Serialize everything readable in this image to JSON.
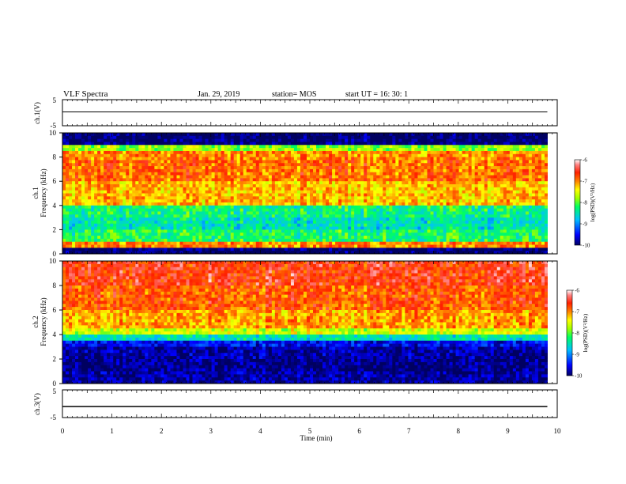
{
  "header": {
    "title": "VLF Spectra",
    "date": "Jan. 29, 2019",
    "station": "station= MOS",
    "start": "start  UT =   16: 30: 1"
  },
  "panels": {
    "ch1": {
      "label": "ch.1(V)",
      "ticks": [
        "5",
        "-5"
      ]
    },
    "spec1": {
      "label_line1": "ch.1",
      "label_line2": "Frequency (kHz)",
      "ticks": [
        "10",
        "8",
        "6",
        "4",
        "2",
        "0"
      ]
    },
    "spec2": {
      "label_line1": "ch.2",
      "label_line2": "Frequency (kHz)",
      "ticks": [
        "10",
        "8",
        "6",
        "4",
        "2",
        "0"
      ]
    },
    "ch3": {
      "label": "ch.3(V)",
      "ticks": [
        "5",
        "-5"
      ]
    }
  },
  "colorbar": {
    "label": "log(PSD)(V²/Hz)",
    "ticks": [
      "-6",
      "-7",
      "-8",
      "-9",
      "-10"
    ],
    "colors": [
      "#000080",
      "#0000ff",
      "#00b0ff",
      "#00ff80",
      "#80ff00",
      "#ffff00",
      "#ff8000",
      "#ff2000",
      "#ff6060",
      "#ffffff"
    ]
  },
  "xaxis": {
    "label": "Time  (min)",
    "ticks": [
      "0",
      "1",
      "2",
      "3",
      "4",
      "5",
      "6",
      "7",
      "8",
      "9",
      "10"
    ]
  },
  "chart_data": [
    {
      "type": "line",
      "name": "ch.1 waveform",
      "xlabel": "Time (min)",
      "ylabel": "ch.1(V)",
      "xlim": [
        0,
        10
      ],
      "ylim": [
        -5,
        5
      ],
      "x": [
        0,
        1,
        2,
        3,
        4,
        5,
        6,
        7,
        8,
        9,
        9.8
      ],
      "y": [
        0.3,
        0.3,
        0.3,
        0.3,
        0.3,
        0.3,
        0.3,
        0.3,
        0.3,
        0.3,
        0.3
      ]
    },
    {
      "type": "heatmap",
      "name": "ch.1 spectrogram",
      "xlabel": "Time (min)",
      "ylabel": "Frequency (kHz)",
      "xlim": [
        0,
        10
      ],
      "ylim": [
        0,
        10
      ],
      "zlabel": "log(PSD)(V²/Hz)",
      "zlim": [
        -10,
        -6
      ],
      "data_end_min": 9.8,
      "freq_bands_khz": [
        0,
        0.4,
        1,
        2,
        3,
        4,
        6,
        7.8,
        8.5,
        9,
        10
      ],
      "band_levels": [
        -10,
        -7,
        -8.2,
        -8.5,
        -8.3,
        -7.2,
        -6.9,
        -7,
        -7.8,
        -10
      ]
    },
    {
      "type": "heatmap",
      "name": "ch.2 spectrogram",
      "xlabel": "Time (min)",
      "ylabel": "Frequency (kHz)",
      "xlim": [
        0,
        10
      ],
      "ylim": [
        0,
        10
      ],
      "zlabel": "log(PSD)(V²/Hz)",
      "zlim": [
        -10,
        -6
      ],
      "data_end_min": 9.8,
      "freq_bands_khz": [
        0,
        1,
        2,
        3,
        3.5,
        4,
        4.5,
        6,
        8,
        10
      ],
      "band_levels": [
        -9.8,
        -9.9,
        -9.8,
        -9.5,
        -8.5,
        -7.6,
        -7.1,
        -6.8,
        -6.6
      ]
    },
    {
      "type": "line",
      "name": "ch.3 waveform",
      "xlabel": "Time (min)",
      "ylabel": "ch.3(V)",
      "xlim": [
        0,
        10
      ],
      "ylim": [
        -5,
        5
      ],
      "x": [
        0,
        9.8
      ],
      "y": [
        -1,
        -1
      ]
    }
  ]
}
